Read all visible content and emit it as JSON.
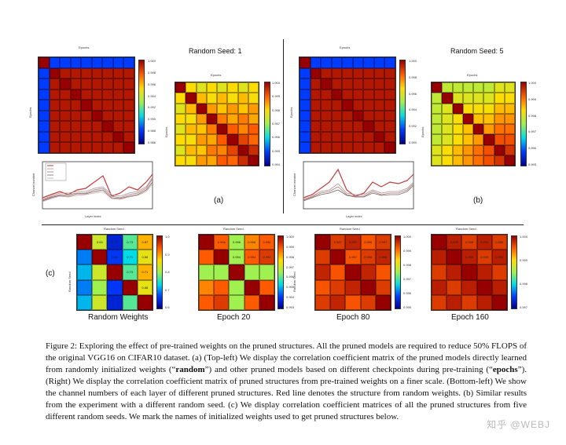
{
  "panel_a": {
    "title": "Random Seed: 1",
    "label": "(a)",
    "big_matrix_top_label": "Epochs",
    "big_matrix_side_label": "Epochs",
    "big_matrix_ticks": [
      "0",
      "10",
      "20",
      "30",
      "40",
      "50",
      "60",
      "70",
      "80",
      "90",
      "100",
      "110",
      "120",
      "130",
      "140",
      "150",
      "160",
      "R"
    ],
    "line_ylabel": "Channel number",
    "line_xlabel": "Layer index",
    "line_legend": [
      "rand",
      "10",
      "20",
      "40",
      "80",
      "120",
      "160"
    ],
    "x_ticks": [
      "0",
      "1",
      "2",
      "3",
      "4",
      "5",
      "6",
      "7",
      "8",
      "9",
      "10",
      "11",
      "12"
    ]
  },
  "panel_b": {
    "title": "Random Seed: 5",
    "label": "(b)"
  },
  "panel_c": {
    "label": "(c)",
    "top_label": "Random Seed",
    "side_label": "Random Seed",
    "ticks": [
      "1",
      "2",
      "3",
      "4",
      "5"
    ],
    "subtitles": [
      "Random Weights",
      "Epoch 20",
      "Epoch 80",
      "Epoch 160"
    ],
    "random_weights_values": [
      "0.65",
      "0.71",
      "0.73",
      "0.87",
      "0.65",
      "0.71",
      "0.68",
      "0.73",
      "0.71",
      "0.68",
      "0.75",
      "0.73",
      "0.87",
      "0.75",
      "0.87"
    ],
    "epoch20_values": [
      "0.996",
      "0.996",
      "0.996",
      "0.996",
      "0.994",
      "0.994",
      "0.993"
    ],
    "epoch80_values": [
      "0.997",
      "0.997",
      "0.996",
      "0.997",
      "0.997",
      "0.998",
      "0.996"
    ],
    "epoch160_values": [
      "0.999",
      "0.998",
      "0.999",
      "0.999",
      "0.998",
      "0.999",
      "0.999"
    ]
  },
  "colorbars": {
    "a_big": [
      "1.000",
      "0.998",
      "0.996",
      "0.994",
      "0.992",
      "0.990",
      "0.988",
      "0.986"
    ],
    "a_zoom": [
      "1.000",
      "0.999",
      "0.998",
      "0.997",
      "0.996",
      "0.995",
      "0.994"
    ],
    "b_big": [
      "1.000",
      "0.998",
      "0.996",
      "0.994",
      "0.992",
      "0.990"
    ],
    "b_zoom": [
      "1.000",
      "0.999",
      "0.998",
      "0.997",
      "0.996",
      "0.995"
    ],
    "c_rw": [
      "1.0",
      "0.9",
      "0.8",
      "0.7",
      "0.6"
    ],
    "c_20": [
      "1.000",
      "0.999",
      "0.998",
      "0.997",
      "0.996",
      "0.995",
      "0.994",
      "0.993"
    ],
    "c_80": [
      "1.000",
      "0.999",
      "0.998",
      "0.997",
      "0.996",
      "0.995"
    ],
    "c_160": [
      "1.000",
      "0.999",
      "0.998",
      "0.997"
    ]
  },
  "caption": {
    "p1": "Figure 2: Exploring the effect of pre-trained weights on the pruned structures. All the pruned models are required to reduce 50% FLOPS of the original VGG16 on CIFAR10 dataset. (a) (Top-left) We display the correlation coefficient matrix of the pruned models directly learned from randomly initialized weights (“",
    "b1": "random",
    "p2": "”) and other pruned models based on different checkpoints during pre-training (“",
    "b2": "epochs",
    "p3": "”). (Right) We display the correlation coefficient matrix of pruned structures from pre-trained weights on a finer scale. (Bottom-left) We show the channel numbers of each layer of different pruned structures. Red line denotes the structure from random weights. (b) Similar results from the experiment with a different random seed. (c) We display correlation coefficient matrices of all the pruned structures from five different random seeds. We mark the names of initialized weights used to get pruned structures below."
  },
  "watermark": "知乎 @WEBJ"
}
